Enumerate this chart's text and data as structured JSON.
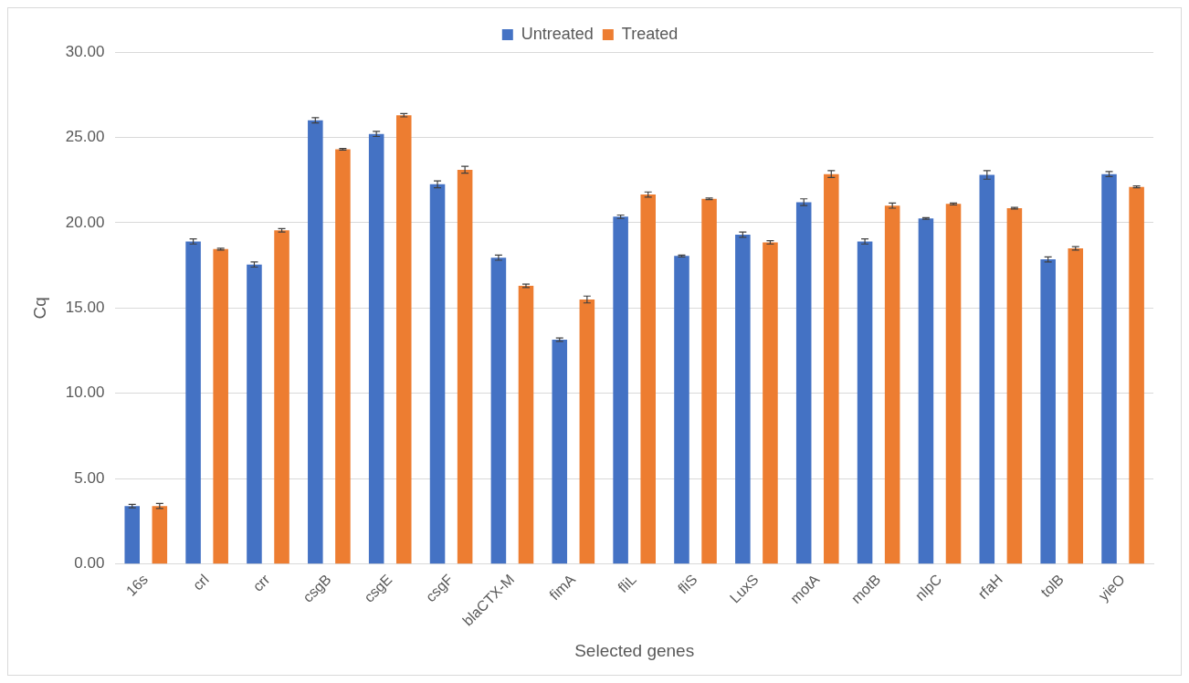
{
  "chart_data": {
    "type": "bar",
    "xlabel": "Selected genes",
    "ylabel": "Cq",
    "categories": [
      "16s",
      "crl",
      "crr",
      "csgB",
      "csgE",
      "csgF",
      "blaCTX-M",
      "fimA",
      "fliL",
      "fliS",
      "LuxS",
      "motA",
      "motB",
      "nlpC",
      "rfaH",
      "tolB",
      "yieO"
    ],
    "series": [
      {
        "name": "Untreated",
        "color": "#4472c4",
        "values": [
          3.4,
          18.9,
          17.55,
          26.0,
          25.2,
          22.25,
          17.95,
          13.15,
          20.35,
          18.05,
          19.3,
          21.2,
          18.9,
          20.25,
          22.8,
          17.85,
          22.85
        ],
        "errors": [
          0.1,
          0.15,
          0.15,
          0.15,
          0.15,
          0.2,
          0.15,
          0.1,
          0.1,
          0.05,
          0.15,
          0.2,
          0.15,
          0.05,
          0.25,
          0.15,
          0.15
        ]
      },
      {
        "name": "Treated",
        "color": "#ed7d31",
        "values": [
          3.4,
          18.45,
          19.55,
          24.3,
          26.3,
          23.1,
          16.3,
          15.5,
          21.65,
          21.4,
          18.85,
          22.85,
          21.0,
          21.1,
          20.85,
          18.5,
          22.1
        ],
        "errors": [
          0.15,
          0.05,
          0.1,
          0.05,
          0.1,
          0.2,
          0.1,
          0.2,
          0.15,
          0.05,
          0.1,
          0.2,
          0.15,
          0.05,
          0.05,
          0.1,
          0.05
        ]
      }
    ],
    "ylim": [
      0,
      30
    ],
    "yticks": [
      {
        "value": 0,
        "label": "0.00"
      },
      {
        "value": 5,
        "label": "5.00"
      },
      {
        "value": 10,
        "label": "10.00"
      },
      {
        "value": 15,
        "label": "15.00"
      },
      {
        "value": 20,
        "label": "20.00"
      },
      {
        "value": 25,
        "label": "25.00"
      },
      {
        "value": 30,
        "label": "30.00"
      }
    ],
    "grid": "y",
    "legend": "top"
  }
}
